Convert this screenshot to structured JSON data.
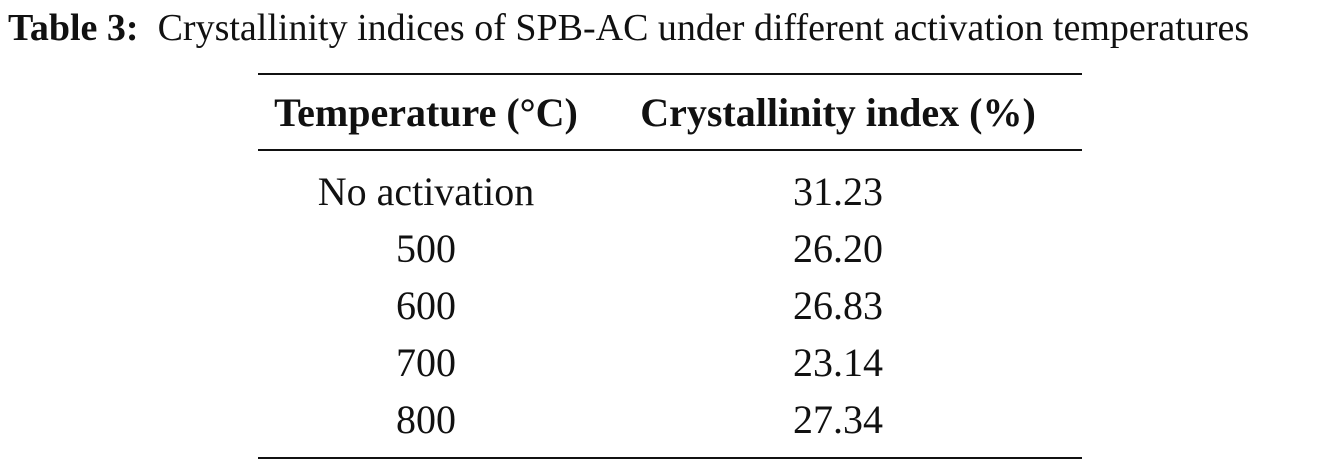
{
  "caption": {
    "label": "Table 3:",
    "text": "Crystallinity indices of SPB-AC under different activation temperatures"
  },
  "table": {
    "headers": [
      "Temperature (°C)",
      "Crystallinity index (%)"
    ],
    "rows": [
      [
        "No activation",
        "31.23"
      ],
      [
        "500",
        "26.20"
      ],
      [
        "600",
        "26.83"
      ],
      [
        "700",
        "23.14"
      ],
      [
        "800",
        "27.34"
      ]
    ]
  }
}
